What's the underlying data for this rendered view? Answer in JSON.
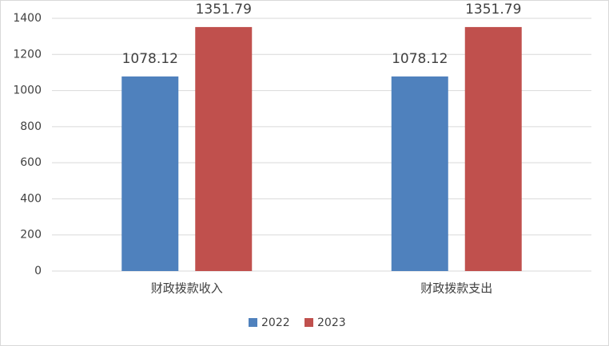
{
  "chart_data": {
    "type": "bar",
    "categories": [
      "财政拨款收入",
      "财政拨款支出"
    ],
    "series": [
      {
        "name": "2022",
        "color": "#4f81bd",
        "values": [
          1078.12,
          1078.12
        ]
      },
      {
        "name": "2023",
        "color": "#c0504d",
        "values": [
          1351.79,
          1351.79
        ]
      }
    ],
    "ylim": [
      0,
      1400
    ],
    "yticks": [
      0,
      200,
      400,
      600,
      800,
      1000,
      1200,
      1400
    ],
    "grid": true,
    "legend": "bottom",
    "data_labels": true
  }
}
